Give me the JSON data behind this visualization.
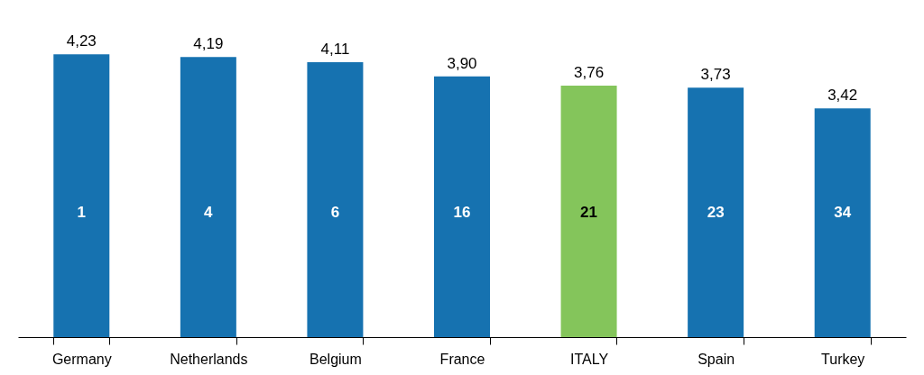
{
  "chart_data": {
    "type": "bar",
    "categories": [
      "Germany",
      "Netherlands",
      "Belgium",
      "France",
      "ITALY",
      "Spain",
      "Turkey"
    ],
    "values": [
      4.23,
      4.19,
      4.11,
      3.9,
      3.76,
      3.73,
      3.42
    ],
    "colors": [
      "#1672b0",
      "#1672b0",
      "#1672b0",
      "#1672b0",
      "#84c55b",
      "#1672b0",
      "#1672b0"
    ],
    "value_labels": [
      "4,23",
      "4,19",
      "4,11",
      "3,90",
      "3,76",
      "3,73",
      "3,42"
    ],
    "annotations": [
      "1",
      "4",
      "6",
      "16",
      "21",
      "23",
      "34"
    ],
    "grid": false,
    "tick_labels": "x"
  }
}
